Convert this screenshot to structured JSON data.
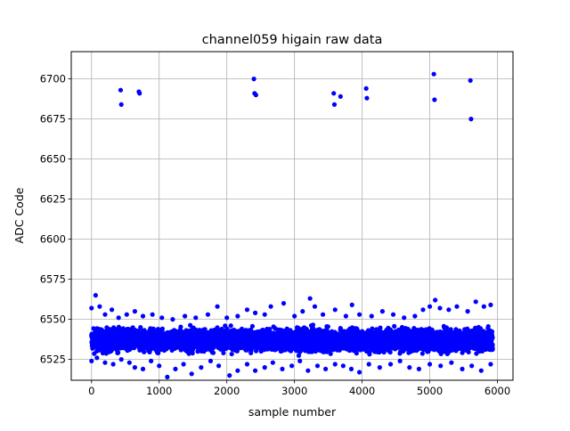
{
  "chart_data": {
    "type": "scatter",
    "title": "channel059 higain raw data",
    "xlabel": "sample number",
    "ylabel": "ADC Code",
    "xlim": [
      -300,
      6230
    ],
    "ylim": [
      6512,
      6717
    ],
    "x_ticks": [
      0,
      1000,
      2000,
      3000,
      4000,
      5000,
      6000
    ],
    "x_tick_labels": [
      "0",
      "1000",
      "2000",
      "3000",
      "4000",
      "5000",
      "6000"
    ],
    "y_ticks": [
      6525,
      6550,
      6575,
      6600,
      6625,
      6650,
      6675,
      6700
    ],
    "y_tick_labels": [
      "6525",
      "6550",
      "6575",
      "6600",
      "6625",
      "6650",
      "6675",
      "6700"
    ],
    "grid": true,
    "marker_color": "#0000ff",
    "series": [
      {
        "points": [
          [
            0,
            6557
          ],
          [
            60,
            6565
          ],
          [
            120,
            6558
          ],
          [
            200,
            6553
          ],
          [
            300,
            6556
          ],
          [
            400,
            6551
          ],
          [
            520,
            6553
          ],
          [
            640,
            6555
          ],
          [
            760,
            6552
          ],
          [
            900,
            6553
          ],
          [
            1040,
            6551
          ],
          [
            1200,
            6550
          ],
          [
            1380,
            6552
          ],
          [
            1540,
            6551
          ],
          [
            1720,
            6553
          ],
          [
            1860,
            6558
          ],
          [
            2000,
            6551
          ],
          [
            2160,
            6552
          ],
          [
            2300,
            6556
          ],
          [
            2420,
            6554
          ],
          [
            2560,
            6553
          ],
          [
            2650,
            6558
          ],
          [
            2840,
            6560
          ],
          [
            3000,
            6552
          ],
          [
            3120,
            6555
          ],
          [
            3230,
            6563
          ],
          [
            3300,
            6558
          ],
          [
            3420,
            6553
          ],
          [
            3600,
            6556
          ],
          [
            3760,
            6552
          ],
          [
            3850,
            6559
          ],
          [
            3960,
            6553
          ],
          [
            4140,
            6552
          ],
          [
            4300,
            6555
          ],
          [
            4460,
            6553
          ],
          [
            4620,
            6551
          ],
          [
            4780,
            6552
          ],
          [
            4900,
            6556
          ],
          [
            5000,
            6558
          ],
          [
            5080,
            6562
          ],
          [
            5150,
            6557
          ],
          [
            5280,
            6556
          ],
          [
            5400,
            6558
          ],
          [
            5560,
            6555
          ],
          [
            5680,
            6561
          ],
          [
            5800,
            6558
          ],
          [
            5900,
            6559
          ],
          [
            0,
            6524
          ],
          [
            80,
            6526
          ],
          [
            200,
            6523
          ],
          [
            320,
            6522
          ],
          [
            440,
            6525
          ],
          [
            560,
            6523
          ],
          [
            640,
            6520
          ],
          [
            760,
            6519
          ],
          [
            880,
            6524
          ],
          [
            1000,
            6521
          ],
          [
            1120,
            6514
          ],
          [
            1240,
            6519
          ],
          [
            1360,
            6522
          ],
          [
            1480,
            6516
          ],
          [
            1620,
            6520
          ],
          [
            1760,
            6524
          ],
          [
            1880,
            6521
          ],
          [
            2040,
            6515
          ],
          [
            2160,
            6518
          ],
          [
            2300,
            6522
          ],
          [
            2420,
            6518
          ],
          [
            2560,
            6520
          ],
          [
            2680,
            6523
          ],
          [
            2820,
            6519
          ],
          [
            2960,
            6521
          ],
          [
            3080,
            6524
          ],
          [
            3200,
            6518
          ],
          [
            3340,
            6521
          ],
          [
            3460,
            6519
          ],
          [
            3600,
            6522
          ],
          [
            3720,
            6521
          ],
          [
            3840,
            6519
          ],
          [
            3960,
            6517
          ],
          [
            4100,
            6522
          ],
          [
            4260,
            6520
          ],
          [
            4420,
            6522
          ],
          [
            4560,
            6524
          ],
          [
            4700,
            6520
          ],
          [
            4840,
            6519
          ],
          [
            5000,
            6522
          ],
          [
            5160,
            6521
          ],
          [
            5320,
            6523
          ],
          [
            5480,
            6519
          ],
          [
            5620,
            6521
          ],
          [
            5760,
            6518
          ],
          [
            5900,
            6522
          ],
          [
            430,
            6693
          ],
          [
            440,
            6684
          ],
          [
            700,
            6692
          ],
          [
            710,
            6691
          ],
          [
            2400,
            6700
          ],
          [
            2410,
            6691
          ],
          [
            2430,
            6690
          ],
          [
            3580,
            6691
          ],
          [
            3590,
            6684
          ],
          [
            3680,
            6689
          ],
          [
            4060,
            6694
          ],
          [
            4070,
            6688
          ],
          [
            5060,
            6703
          ],
          [
            5070,
            6687
          ],
          [
            5600,
            6699
          ],
          [
            5610,
            6675
          ]
        ]
      }
    ],
    "band": {
      "x_range": [
        0,
        5930
      ],
      "y_center": 6537,
      "y_spread": 11,
      "n_points": 5930
    }
  }
}
